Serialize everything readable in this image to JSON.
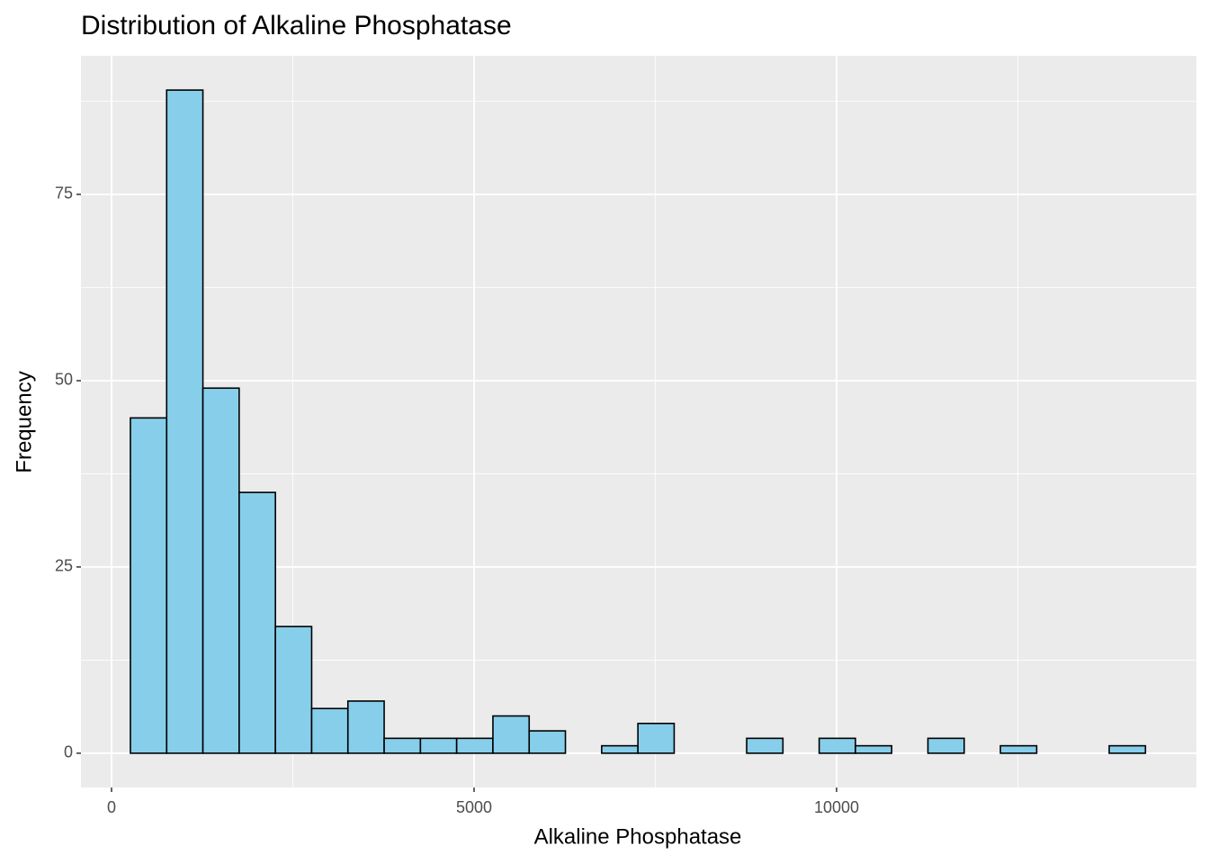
{
  "chart_data": {
    "type": "histogram",
    "title": "Distribution of Alkaline Phosphatase",
    "x_label": "Alkaline Phosphatase",
    "y_label": "Frequency",
    "bins": [
      260,
      760,
      1260,
      1760,
      2260,
      2760,
      3260,
      3760,
      4260,
      4760,
      5260,
      5760,
      6260,
      6760,
      7260,
      7760,
      8260,
      8760,
      9260,
      9760,
      10260,
      10760,
      11260,
      11760,
      12260,
      12760,
      13260,
      13760,
      14260
    ],
    "values": [
      45,
      89,
      49,
      35,
      17,
      6,
      7,
      2,
      2,
      2,
      5,
      3,
      0,
      1,
      4,
      0,
      0,
      2,
      0,
      2,
      1,
      0,
      2,
      0,
      1,
      0,
      0,
      1
    ],
    "color": "#87ceeb",
    "edge_color": "#000000",
    "xlim": [
      -422,
      14963
    ],
    "ylim": [
      -4.6,
      93.6
    ],
    "xticks": [
      0,
      5000,
      10000
    ],
    "yticks": [
      0,
      25,
      50,
      75
    ],
    "grid": true
  }
}
